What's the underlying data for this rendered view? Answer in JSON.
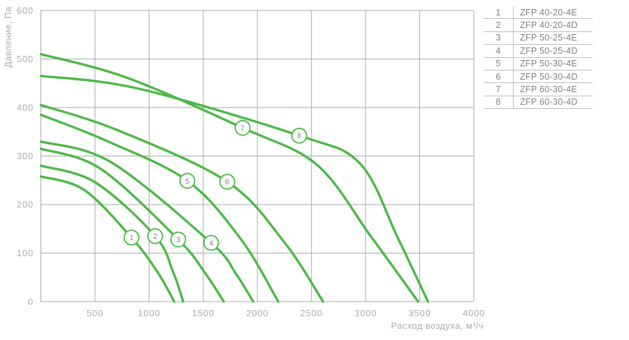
{
  "colors": {
    "curve_green": "#4db848",
    "grid_gray": "#a6a8ab",
    "tick_text": "#a9abae",
    "legend_text": "#7d7f82",
    "legend_line": "#b9bbbd",
    "marker_fill": "#ffffff",
    "marker_number": "#85878a"
  },
  "chart_data": {
    "type": "line",
    "title": "",
    "xlabel": "Расход воздуха, м³/ч",
    "ylabel": "Давление, Па",
    "xlim": [
      0,
      4000
    ],
    "ylim": [
      0,
      600
    ],
    "x_ticks": [
      500,
      1000,
      1500,
      2000,
      2500,
      3000,
      3500,
      4000
    ],
    "y_ticks": [
      0,
      100,
      200,
      300,
      400,
      500,
      600
    ],
    "grid": true,
    "legend_position": "right-table",
    "series": [
      {
        "num": "1",
        "name": "ZFP 40-20-4E",
        "points": [
          [
            0,
            258
          ],
          [
            400,
            230
          ],
          [
            837,
            132
          ],
          [
            1080,
            60
          ],
          [
            1231,
            0
          ]
        ],
        "label_at": [
          837,
          132
        ]
      },
      {
        "num": "2",
        "name": "ZFP 40-20-4D",
        "points": [
          [
            0,
            280
          ],
          [
            500,
            246
          ],
          [
            1056,
            135
          ],
          [
            1220,
            62
          ],
          [
            1315,
            0
          ]
        ],
        "label_at": [
          1056,
          135
        ]
      },
      {
        "num": "3",
        "name": "ZFP 50-25-4E",
        "points": [
          [
            0,
            315
          ],
          [
            550,
            274
          ],
          [
            1269,
            128
          ],
          [
            1520,
            58
          ],
          [
            1689,
            0
          ]
        ],
        "label_at": [
          1269,
          128
        ]
      },
      {
        "num": "4",
        "name": "ZFP 50-25-4D",
        "points": [
          [
            0,
            330
          ],
          [
            650,
            287
          ],
          [
            1573,
            121
          ],
          [
            1800,
            58
          ],
          [
            1961,
            0
          ]
        ],
        "label_at": [
          1573,
          121
        ]
      },
      {
        "num": "5",
        "name": "ZFP 50-30-4E",
        "points": [
          [
            0,
            385
          ],
          [
            600,
            332
          ],
          [
            1353,
            249
          ],
          [
            1850,
            128
          ],
          [
            2193,
            0
          ]
        ],
        "label_at": [
          1353,
          249
        ]
      },
      {
        "num": "6",
        "name": "ZFP 50-30-4D",
        "points": [
          [
            0,
            405
          ],
          [
            700,
            354
          ],
          [
            1722,
            247
          ],
          [
            2250,
            122
          ],
          [
            2607,
            0
          ]
        ],
        "label_at": [
          1722,
          247
        ]
      },
      {
        "num": "7",
        "name": "ZFP 60-30-4E",
        "points": [
          [
            0,
            510
          ],
          [
            800,
            461
          ],
          [
            1864,
            358
          ],
          [
            2550,
            282
          ],
          [
            3050,
            134
          ],
          [
            3485,
            0
          ]
        ],
        "label_at": [
          1864,
          358
        ]
      },
      {
        "num": "8",
        "name": "ZFP 60-30-4D",
        "points": [
          [
            0,
            465
          ],
          [
            900,
            439
          ],
          [
            2387,
            342
          ],
          [
            2950,
            284
          ],
          [
            3300,
            130
          ],
          [
            3576,
            0
          ]
        ],
        "label_at": [
          2387,
          342
        ]
      }
    ]
  },
  "legend": {
    "rows": [
      {
        "num": "1",
        "model": "ZFP 40-20-4E"
      },
      {
        "num": "2",
        "model": "ZFP 40-20-4D"
      },
      {
        "num": "3",
        "model": "ZFP 50-25-4E"
      },
      {
        "num": "4",
        "model": "ZFP 50-25-4D"
      },
      {
        "num": "5",
        "model": "ZFP 50-30-4E"
      },
      {
        "num": "6",
        "model": "ZFP 50-30-4D"
      },
      {
        "num": "7",
        "model": "ZFP 60-30-4E"
      },
      {
        "num": "8",
        "model": "ZFP 60-30-4D"
      }
    ]
  }
}
